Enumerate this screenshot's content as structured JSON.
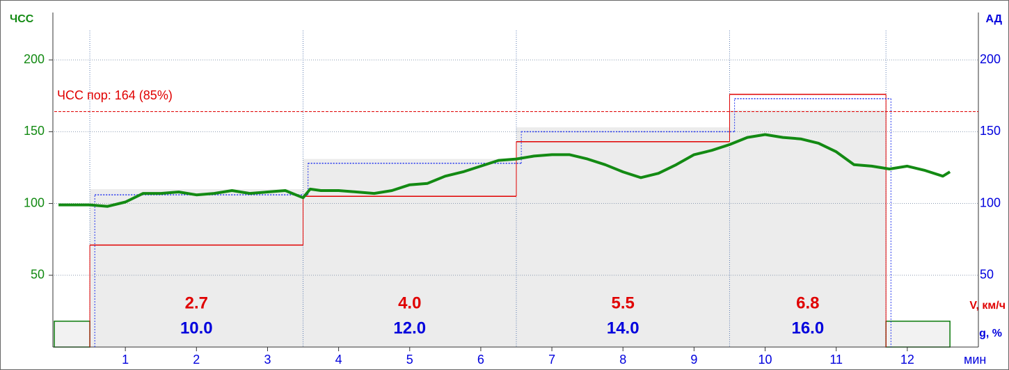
{
  "chart_data": {
    "type": "stress-test",
    "y_label": "ЧСС",
    "y2_label": "АД",
    "x_label": "мин",
    "speed_label": "V, км/ч",
    "grade_label": "g, %",
    "xlim": [
      0,
      13
    ],
    "xticks": [
      1,
      2,
      3,
      4,
      5,
      6,
      7,
      8,
      9,
      10,
      11,
      12
    ],
    "ylim": [
      0,
      233
    ],
    "yticks": [
      50,
      100,
      150,
      200
    ],
    "y2lim": [
      0,
      233
    ],
    "y2ticks": [
      50,
      100,
      150,
      200
    ],
    "grid": true,
    "threshold": {
      "value": 164,
      "label": "ЧСС пор: 164 (85%)",
      "color": "#e00000"
    },
    "stage_bounds": [
      0.5,
      3.5,
      6.5,
      9.5,
      11.7
    ],
    "stage_fill": {
      "color": "#ececec",
      "values": [
        110,
        131,
        153,
        165
      ]
    },
    "rest_blocks": {
      "color": "#0a7a0a",
      "x": [
        [
          0,
          0.5
        ],
        [
          11.7,
          12.6
        ]
      ],
      "values": [
        18,
        18
      ]
    },
    "speeds": {
      "color": "#e00000",
      "values": [
        2.7,
        4,
        5.5,
        6.8
      ],
      "value_labels": [
        "2.7",
        "4.0",
        "5.5",
        "6.8"
      ]
    },
    "grades": {
      "color": "#0000dd",
      "values": [
        10,
        12,
        14,
        16
      ],
      "value_labels": [
        "10.0",
        "12.0",
        "14.0",
        "16.0"
      ]
    },
    "steps": [
      {
        "color": "#e00000",
        "axis": "y",
        "bounds": [
          0.5,
          3.5,
          6.5,
          9.5,
          11.7
        ],
        "values": [
          71,
          105,
          143,
          176
        ]
      },
      {
        "color": "#2233ee",
        "axis": "y2",
        "bounds": [
          0.57,
          3.57,
          6.57,
          9.57,
          11.77
        ],
        "values": [
          106,
          128,
          150,
          173
        ]
      }
    ],
    "series": [
      {
        "color": "#138a13",
        "axis": "y",
        "x": [
          0.06,
          0.25,
          0.5,
          0.75,
          1,
          1.25,
          1.5,
          1.75,
          2,
          2.25,
          2.5,
          2.75,
          3,
          3.25,
          3.5,
          3.6,
          3.75,
          4,
          4.25,
          4.5,
          4.75,
          5,
          5.25,
          5.5,
          5.75,
          6,
          6.25,
          6.5,
          6.75,
          7,
          7.25,
          7.5,
          7.75,
          8,
          8.25,
          8.5,
          8.75,
          9,
          9.25,
          9.5,
          9.75,
          10,
          10.25,
          10.5,
          10.75,
          11,
          11.25,
          11.5,
          11.75,
          12,
          12.25,
          12.5,
          12.6
        ],
        "values": [
          99,
          99,
          99,
          98,
          101,
          107,
          107,
          108,
          106,
          107,
          109,
          107,
          108,
          109,
          104,
          110,
          109,
          109,
          108,
          107,
          109,
          113,
          114,
          119,
          122,
          126,
          130,
          131,
          133,
          134,
          134,
          131,
          127,
          122,
          118,
          121,
          127,
          134,
          137,
          141,
          146,
          148,
          146,
          145,
          142,
          136,
          127,
          126,
          124,
          126,
          123,
          119,
          122
        ]
      }
    ]
  }
}
